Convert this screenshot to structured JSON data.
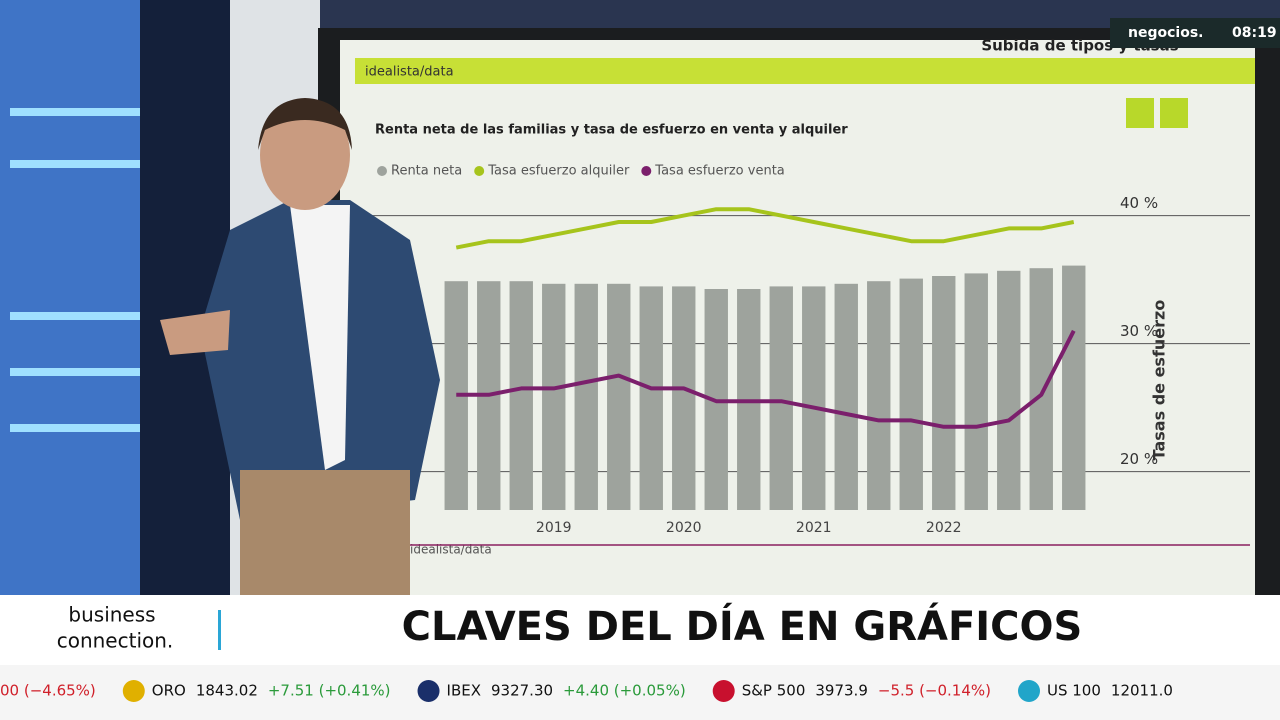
{
  "screen": {
    "header": "Subida de tipos y tasas",
    "brand": "idealista/data",
    "source": "idealista/data"
  },
  "chart_data": {
    "type": "bar-line",
    "title": "Renta neta de las familias y tasa de esfuerzo en venta y alquiler",
    "categories": [
      null,
      null,
      null,
      "2019",
      null,
      null,
      null,
      "2020",
      null,
      null,
      null,
      "2021",
      null,
      null,
      null,
      "2022",
      null,
      null,
      null,
      null
    ],
    "series": [
      {
        "name": "Renta neta",
        "color": "#9ea39d",
        "axis": "y2",
        "values": [
          88,
          88,
          88,
          87,
          87,
          87,
          86,
          86,
          85,
          85,
          86,
          86,
          87,
          88,
          89,
          90,
          91,
          92,
          93,
          94
        ]
      },
      {
        "name": "Tasa esfuerzo alquiler",
        "color": "#a6c41c",
        "values": [
          37.5,
          38,
          38,
          38.5,
          39,
          39.5,
          39.5,
          40,
          40.5,
          40.5,
          40,
          39.5,
          39,
          38.5,
          38,
          38,
          38.5,
          39,
          39,
          39.5
        ]
      },
      {
        "name": "Tasa esfuerzo venta",
        "color": "#7b1f6c",
        "values": [
          26,
          26,
          26.5,
          26.5,
          27,
          27.5,
          26.5,
          26.5,
          25.5,
          25.5,
          25.5,
          25,
          24.5,
          24,
          24,
          23.5,
          23.5,
          24,
          26,
          31
        ]
      }
    ],
    "ylabel": "Tasas de esfuerzo",
    "ylim": [
      17,
      42
    ],
    "yticks": [
      {
        "value": 20,
        "label": "20 %"
      },
      {
        "value": 30,
        "label": "30 %"
      },
      {
        "value": 40,
        "label": "40 %"
      }
    ],
    "y2lim": [
      0,
      100
    ]
  },
  "lower_third": {
    "logo_line1": "business",
    "logo_line2": "connection.",
    "headline": "CLAVES DEL DÍA EN GRÁFICOS"
  },
  "bug": {
    "channel": "negocios.",
    "time": "08:19"
  },
  "ticker": [
    {
      "name": "",
      "value": "",
      "change": "00 (−4.65%)"
    },
    {
      "name": "ORO",
      "value": "1843.02",
      "change": "+7.51 (+0.41%)"
    },
    {
      "name": "IBEX",
      "value": "9327.30",
      "change": "+4.40 (+0.05%)"
    },
    {
      "name": "S&P 500",
      "value": "3973.9",
      "change": "−5.5 (−0.14%)"
    },
    {
      "name": "US 100",
      "value": "12011.0",
      "change": ""
    }
  ]
}
